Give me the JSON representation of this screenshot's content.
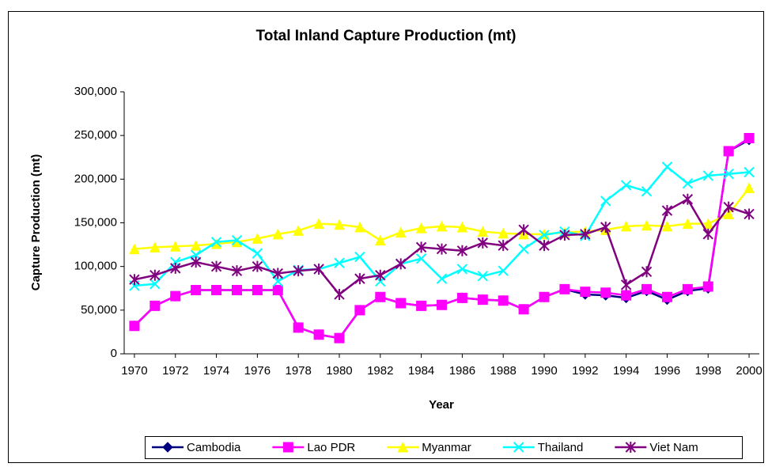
{
  "chart_data": {
    "type": "line",
    "title": "Total Inland Capture Production (mt)",
    "x_label": "Year",
    "y_label": "Capture Production (mt)",
    "x": [
      1970,
      1971,
      1972,
      1973,
      1974,
      1975,
      1976,
      1977,
      1978,
      1979,
      1980,
      1981,
      1982,
      1983,
      1984,
      1985,
      1986,
      1987,
      1988,
      1989,
      1990,
      1991,
      1992,
      1993,
      1994,
      1995,
      1996,
      1997,
      1998,
      1999,
      2000
    ],
    "xlim": [
      1969.5,
      2000.5
    ],
    "xticks": [
      1970,
      1972,
      1974,
      1976,
      1978,
      1980,
      1982,
      1984,
      1986,
      1988,
      1990,
      1992,
      1994,
      1996,
      1998,
      2000
    ],
    "ylim": [
      0,
      300000
    ],
    "yticks": [
      0,
      {
        "value": 50000,
        "label": "50,000"
      },
      {
        "value": 100000,
        "label": "100,000"
      },
      {
        "value": 150000,
        "label": "150,000"
      },
      {
        "value": 200000,
        "label": "200,000"
      },
      {
        "value": 250000,
        "label": "250,000"
      },
      {
        "value": 300000,
        "label": "300,000"
      }
    ],
    "grid": false,
    "legend": "bottom",
    "series": [
      {
        "name": "Cambodia",
        "color": "#000080",
        "marker": "diamond",
        "values": [
          32000,
          55000,
          66000,
          73000,
          73000,
          73000,
          73000,
          73000,
          30000,
          22000,
          18000,
          50000,
          65000,
          58000,
          55000,
          56000,
          64000,
          62000,
          61000,
          51000,
          65000,
          74000,
          68000,
          67000,
          64000,
          72000,
          62000,
          72000,
          75000,
          232000,
          245000
        ]
      },
      {
        "name": "Lao PDR",
        "color": "#ff00ff",
        "marker": "square",
        "values": [
          32000,
          55000,
          66000,
          73000,
          73000,
          73000,
          73000,
          73000,
          30000,
          22000,
          18000,
          50000,
          65000,
          58000,
          55000,
          56000,
          64000,
          62000,
          61000,
          51000,
          65000,
          74000,
          71000,
          70000,
          67000,
          74000,
          65000,
          74000,
          77000,
          232000,
          247000
        ]
      },
      {
        "name": "Myanmar",
        "color": "#ffff00",
        "marker": "triangle",
        "values": [
          120000,
          122000,
          123000,
          124000,
          126000,
          128000,
          132000,
          137000,
          141000,
          149000,
          148000,
          145000,
          130000,
          139000,
          144000,
          146000,
          145000,
          140000,
          138000,
          137000,
          137000,
          139000,
          140000,
          142000,
          146000,
          147000,
          146000,
          149000,
          149000,
          160000,
          190000
        ]
      },
      {
        "name": "Thailand",
        "color": "#00ffff",
        "marker": "x",
        "values": [
          78000,
          80000,
          105000,
          113000,
          128000,
          130000,
          115000,
          83000,
          96000,
          97000,
          104000,
          111000,
          83000,
          103000,
          109000,
          86000,
          97000,
          89000,
          95000,
          120000,
          136000,
          140000,
          135000,
          175000,
          193000,
          186000,
          214000,
          195000,
          204000,
          206000,
          208000
        ]
      },
      {
        "name": "Viet Nam",
        "color": "#800080",
        "marker": "star",
        "values": [
          85000,
          90000,
          98000,
          105000,
          100000,
          95000,
          100000,
          92000,
          95000,
          97000,
          68000,
          86000,
          90000,
          103000,
          122000,
          120000,
          118000,
          127000,
          124000,
          142000,
          124000,
          136000,
          137000,
          145000,
          79000,
          94000,
          164000,
          177000,
          137000,
          168000,
          160000
        ]
      }
    ]
  }
}
